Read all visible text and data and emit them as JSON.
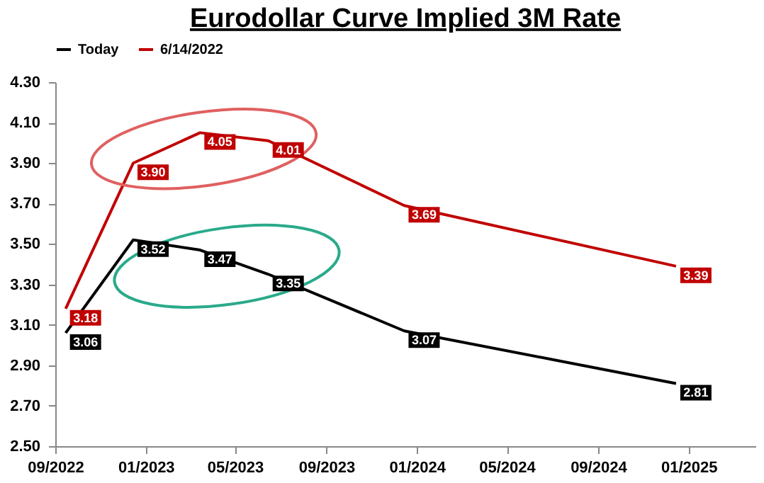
{
  "chart_data": {
    "type": "line",
    "title": "Eurodollar Curve Implied 3M Rate",
    "x": [
      "2022-09-15",
      "2022-12-15",
      "2023-03-15",
      "2023-06-15",
      "2023-12-15",
      "2024-12-15"
    ],
    "series": [
      {
        "name": "Today",
        "color": "#000000",
        "values": [
          3.06,
          3.52,
          3.47,
          3.35,
          3.07,
          2.81
        ],
        "value_labels": [
          "3.06",
          "3.52",
          "3.47",
          "3.35",
          "3.07",
          "2.81"
        ]
      },
      {
        "name": "6/14/2022",
        "color": "#c00000",
        "values": [
          3.18,
          3.9,
          4.05,
          4.01,
          3.69,
          3.39
        ],
        "value_labels": [
          "3.18",
          "3.90",
          "4.05",
          "4.01",
          "3.69",
          "3.39"
        ]
      }
    ],
    "xlim": [
      "2022-09-01",
      "2025-04-01"
    ],
    "xticks": [
      {
        "value": "2022-09-01",
        "label": "09/2022"
      },
      {
        "value": "2023-01-01",
        "label": "01/2023"
      },
      {
        "value": "2023-05-01",
        "label": "05/2023"
      },
      {
        "value": "2023-09-01",
        "label": "09/2023"
      },
      {
        "value": "2024-01-01",
        "label": "01/2024"
      },
      {
        "value": "2024-05-01",
        "label": "05/2024"
      },
      {
        "value": "2024-09-01",
        "label": "09/2024"
      },
      {
        "value": "2025-01-01",
        "label": "01/2025"
      }
    ],
    "ylim": [
      2.5,
      4.3
    ],
    "yticks": [
      {
        "value": 2.5,
        "label": "2.50"
      },
      {
        "value": 2.7,
        "label": "2.70"
      },
      {
        "value": 2.9,
        "label": "2.90"
      },
      {
        "value": 3.1,
        "label": "3.10"
      },
      {
        "value": 3.3,
        "label": "3.30"
      },
      {
        "value": 3.5,
        "label": "3.50"
      },
      {
        "value": 3.7,
        "label": "3.70"
      },
      {
        "value": 3.9,
        "label": "3.90"
      },
      {
        "value": 4.1,
        "label": "4.10"
      },
      {
        "value": 4.3,
        "label": "4.30"
      }
    ],
    "legend": "top",
    "grid": false,
    "marker": "none",
    "line_style": "solid"
  }
}
